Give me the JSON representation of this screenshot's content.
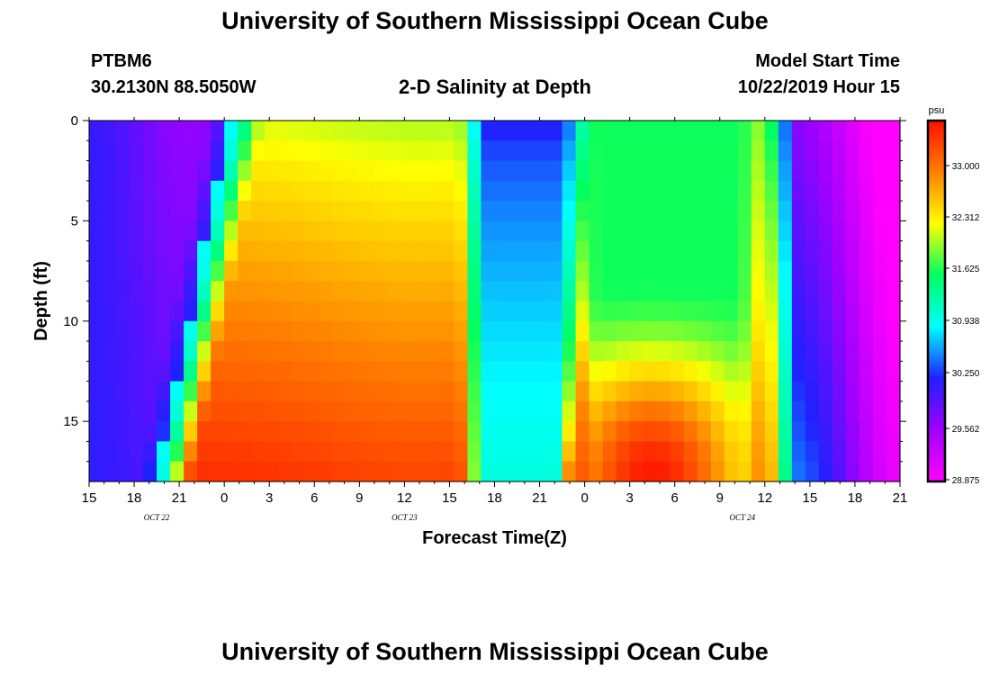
{
  "header": {
    "title": "University of Southern Mississippi Ocean Cube",
    "station": "PTBM6",
    "location": "30.2130N 88.5050W",
    "plot_title": "2-D Salinity at Depth",
    "model_label": "Model Start Time",
    "model_time": "10/22/2019 Hour 15"
  },
  "footer": {
    "title": "University of Southern Mississippi Ocean Cube"
  },
  "chart_data": {
    "type": "heatmap",
    "title": "2-D Salinity at Depth",
    "xlabel": "Forecast Time(Z)",
    "ylabel": "Depth (ft)",
    "x_tick_labels": [
      "15",
      "18",
      "21",
      "0",
      "3",
      "6",
      "9",
      "12",
      "15",
      "18",
      "21",
      "0",
      "3",
      "6",
      "9",
      "12",
      "15",
      "18",
      "21"
    ],
    "date_labels": [
      {
        "label": "OCT 22",
        "tick_index": 1.5
      },
      {
        "label": "OCT 23",
        "tick_index": 7
      },
      {
        "label": "OCT 24",
        "tick_index": 14.5
      }
    ],
    "y_ticks": [
      0,
      5,
      10,
      15
    ],
    "y_range": [
      0,
      18
    ],
    "x_range_hours": [
      0,
      54
    ],
    "colorbar": {
      "unit": "psu",
      "ticks": [
        "33.000",
        "32.312",
        "31.625",
        "30.938",
        "30.250",
        "29.562",
        "28.875"
      ],
      "range": [
        28.875,
        33.5
      ],
      "colors": [
        "#ff00ff",
        "#a000ff",
        "#2020ff",
        "#00ffff",
        "#00ff60",
        "#ffff00",
        "#ff8000",
        "#ff1000"
      ]
    },
    "field_notes": "Salinity (psu) at depth 0-18 ft over forecast hours 0-54 from 10/22/2019 hour 15",
    "grid": false
  }
}
